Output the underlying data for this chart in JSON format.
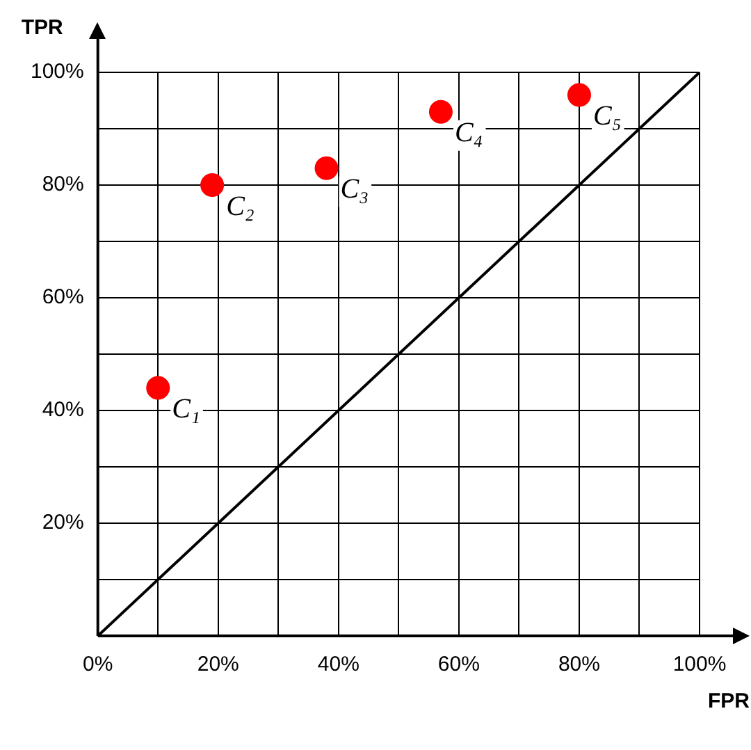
{
  "chart_data": {
    "type": "scatter",
    "xlabel": "FPR",
    "ylabel": "TPR",
    "xlim": [
      0,
      100
    ],
    "ylim": [
      0,
      100
    ],
    "xticks": [
      {
        "value": 0,
        "label": "0%"
      },
      {
        "value": 10,
        "label": null
      },
      {
        "value": 20,
        "label": "20%"
      },
      {
        "value": 30,
        "label": null
      },
      {
        "value": 40,
        "label": "40%"
      },
      {
        "value": 50,
        "label": null
      },
      {
        "value": 60,
        "label": "60%"
      },
      {
        "value": 70,
        "label": null
      },
      {
        "value": 80,
        "label": "80%"
      },
      {
        "value": 90,
        "label": null
      },
      {
        "value": 100,
        "label": "100%"
      }
    ],
    "yticks": [
      {
        "value": 0,
        "label": null
      },
      {
        "value": 10,
        "label": null
      },
      {
        "value": 20,
        "label": "20%"
      },
      {
        "value": 30,
        "label": null
      },
      {
        "value": 40,
        "label": "40%"
      },
      {
        "value": 50,
        "label": null
      },
      {
        "value": 60,
        "label": "60%"
      },
      {
        "value": 70,
        "label": null
      },
      {
        "value": 80,
        "label": "80%"
      },
      {
        "value": 90,
        "label": null
      },
      {
        "value": 100,
        "label": "100%"
      }
    ],
    "grid": true,
    "legend": false,
    "marker": "circle",
    "series": [
      {
        "type": "scatter",
        "color": "#ff0000",
        "x": [
          10,
          19,
          38,
          57,
          80
        ],
        "values": [
          44,
          80,
          83,
          93,
          96
        ]
      },
      {
        "type": "line",
        "color": "#000000",
        "x": [
          0,
          100
        ],
        "values": [
          0,
          100
        ],
        "marker": "none",
        "line_style": "solid"
      }
    ],
    "annotations": [
      {
        "text": "C₁",
        "x": 10,
        "y": 44
      },
      {
        "text": "C₂",
        "x": 19,
        "y": 80
      },
      {
        "text": "C₃",
        "x": 38,
        "y": 83
      },
      {
        "text": "C₄",
        "x": 57,
        "y": 93
      },
      {
        "text": "C₅",
        "x": 80,
        "y": 96
      }
    ]
  }
}
